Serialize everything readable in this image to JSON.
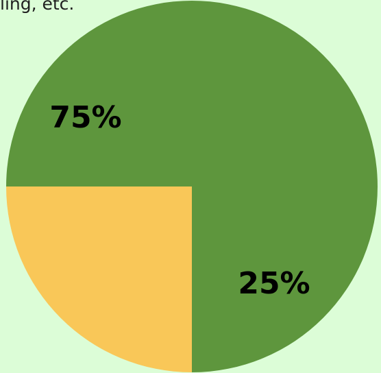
{
  "caption": "ling, etc.",
  "chart_data": {
    "type": "pie",
    "title": "",
    "slices": [
      {
        "label": "75%",
        "value": 75,
        "color": "#5e963d"
      },
      {
        "label": "25%",
        "value": 25,
        "color": "#f9c758"
      }
    ]
  }
}
